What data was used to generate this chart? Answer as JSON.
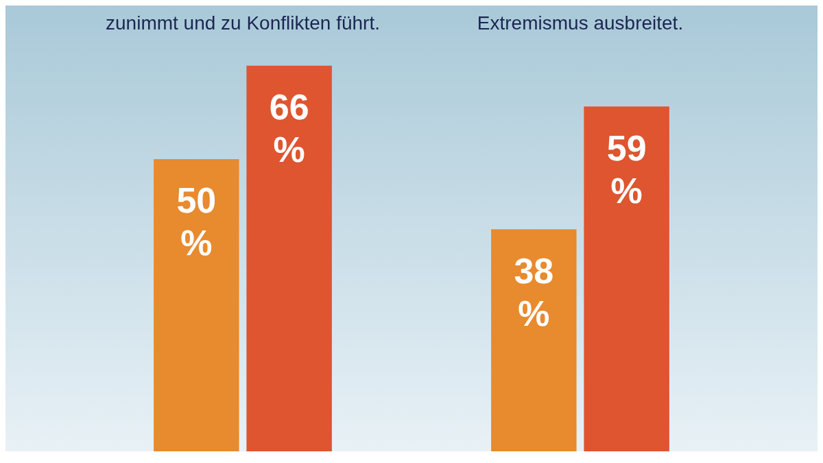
{
  "chart_data": {
    "type": "bar",
    "categories": [
      "zunimmt und zu Konflikten führt.",
      "Extremismus ausbreitet."
    ],
    "series": [
      {
        "color": "#e88a2e",
        "values": [
          50,
          38
        ],
        "value_labels": [
          "50 %",
          "38 %"
        ]
      },
      {
        "color": "#de5530",
        "values": [
          66,
          59
        ],
        "value_labels": [
          "66 %",
          "59 %"
        ]
      }
    ],
    "grid": false,
    "legend": false
  }
}
